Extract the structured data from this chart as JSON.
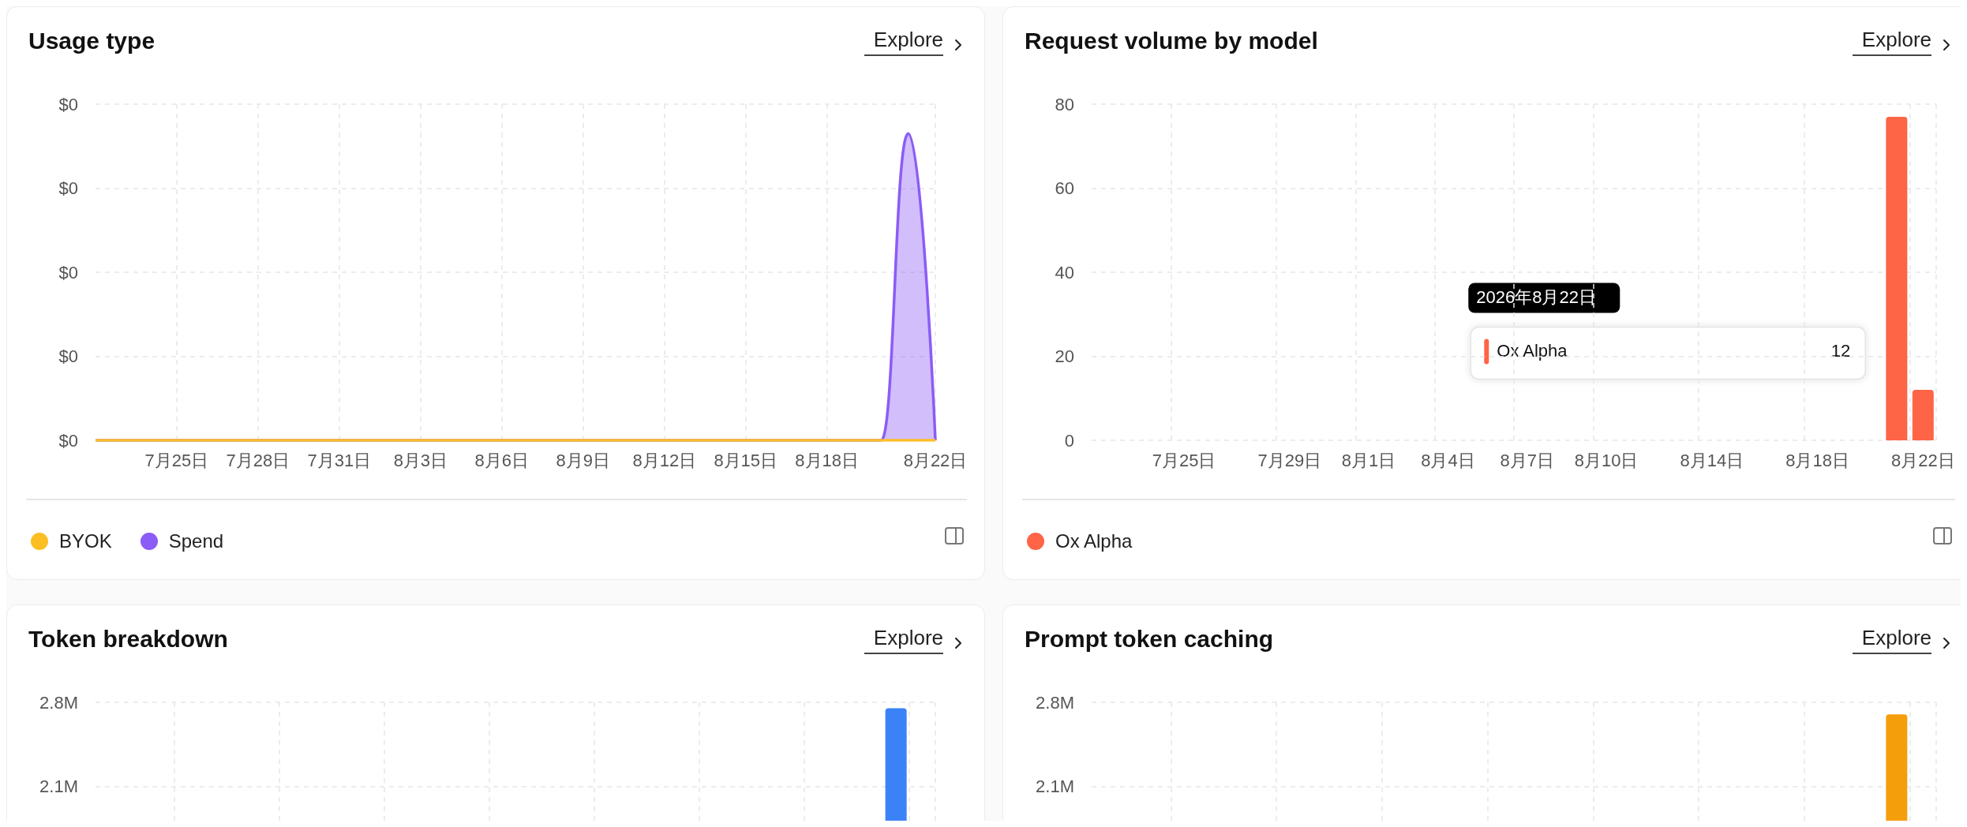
{
  "chart_data": [
    {
      "type": "area",
      "title": "Usage type",
      "annotations": [
        "Explore"
      ],
      "categories": [
        null,
        null,
        null,
        "7月25日",
        null,
        null,
        "7月28日",
        null,
        null,
        "7月31日",
        null,
        null,
        "8月3日",
        null,
        null,
        "8月6日",
        null,
        null,
        "8月9日",
        null,
        null,
        "8月12日",
        null,
        null,
        "8月15日",
        null,
        null,
        "8月18日",
        null,
        null,
        null,
        "8月22日"
      ],
      "series": [
        {
          "name": "BYOK",
          "type": "line",
          "color": "#fbbf24",
          "values": [
            0,
            0,
            0,
            0,
            0,
            0,
            0,
            0,
            0,
            0,
            0,
            0,
            0,
            0,
            0,
            0,
            0,
            0,
            0,
            0,
            0,
            0,
            0,
            0,
            0,
            0,
            0,
            0,
            0,
            0,
            0,
            0
          ]
        },
        {
          "name": "Spend",
          "color": "#8b5cf6",
          "values": [
            0,
            0,
            0,
            0,
            0,
            0,
            0,
            0,
            0,
            0,
            0,
            0,
            0,
            0,
            0,
            0,
            0,
            0,
            0,
            0,
            0,
            0,
            0,
            0,
            0,
            0,
            0,
            0,
            0,
            0,
            0.00365,
            0
          ]
        }
      ],
      "ylim": [
        0,
        0.004
      ],
      "yticks": [
        {
          "value": 0,
          "label": "$0"
        },
        {
          "value": 0.001,
          "label": "$0"
        },
        {
          "value": 0.002,
          "label": "$0"
        },
        {
          "value": 0.003,
          "label": "$0"
        },
        {
          "value": 0.004,
          "label": "$0"
        }
      ],
      "grid": true,
      "legend": "bottom"
    },
    {
      "type": "bar",
      "title": "Request volume by model",
      "annotations": [
        "Explore",
        "2026年8月22日",
        "12"
      ],
      "categories": [
        null,
        null,
        null,
        "7月25日",
        null,
        null,
        null,
        "7月29日",
        null,
        null,
        "8月1日",
        null,
        null,
        "8月4日",
        null,
        null,
        "8月7日",
        null,
        null,
        "8月10日",
        null,
        null,
        null,
        "8月14日",
        null,
        null,
        null,
        "8月18日",
        null,
        null,
        null,
        "8月22日"
      ],
      "series": [
        {
          "name": "Ox Alpha",
          "color": "#fe6446",
          "values": [
            0,
            0,
            0,
            0,
            0,
            0,
            0,
            0,
            0,
            0,
            0,
            0,
            0,
            0,
            0,
            0,
            0,
            0,
            0,
            0,
            0,
            0,
            0,
            0,
            0,
            0,
            0,
            0,
            0,
            0,
            77,
            12
          ]
        }
      ],
      "ylim": [
        0,
        80
      ],
      "yticks": [
        0,
        20,
        40,
        60,
        80
      ],
      "grid": true,
      "legend": "bottom"
    },
    {
      "type": "bar",
      "title": "Token breakdown",
      "annotations": [
        "Explore"
      ],
      "categories": [
        null,
        null,
        null,
        null,
        null,
        null,
        null,
        null,
        null,
        null,
        null,
        null,
        null,
        null,
        null,
        null,
        null,
        null,
        null,
        null,
        null,
        null,
        null,
        null,
        null,
        null,
        null,
        null,
        null,
        null,
        null,
        null
      ],
      "series": [
        {
          "color": "#3b82f6",
          "values": [
            0,
            0,
            0,
            0,
            0,
            0,
            0,
            0,
            0,
            0,
            0,
            0,
            0,
            0,
            0,
            0,
            0,
            0,
            0,
            0,
            0,
            0,
            0,
            0,
            0,
            0,
            0,
            0,
            0,
            0,
            2750000,
            0
          ]
        }
      ],
      "ylim": [
        0,
        2800000
      ],
      "yticks": [
        {
          "value": 2100000,
          "label": "2.1M"
        },
        {
          "value": 2800000,
          "label": "2.8M"
        }
      ],
      "grid": true,
      "tick_labels": "y"
    },
    {
      "type": "bar",
      "title": "Prompt token caching",
      "annotations": [
        "Explore"
      ],
      "categories": [
        null,
        null,
        null,
        null,
        null,
        null,
        null,
        null,
        null,
        null,
        null,
        null,
        null,
        null,
        null,
        null,
        null,
        null,
        null,
        null,
        null,
        null,
        null,
        null,
        null,
        null,
        null,
        null,
        null,
        null,
        null,
        null
      ],
      "series": [
        {
          "color": "#f59e0b",
          "values": [
            0,
            0,
            0,
            0,
            0,
            0,
            0,
            0,
            0,
            0,
            0,
            0,
            0,
            0,
            0,
            0,
            0,
            0,
            0,
            0,
            0,
            0,
            0,
            0,
            0,
            0,
            0,
            0,
            0,
            0,
            2700000,
            0
          ]
        }
      ],
      "ylim": [
        0,
        2800000
      ],
      "yticks": [
        {
          "value": 2100000,
          "label": "2.1M"
        },
        {
          "value": 2800000,
          "label": "2.8M"
        }
      ],
      "grid": true,
      "tick_labels": "y"
    }
  ]
}
